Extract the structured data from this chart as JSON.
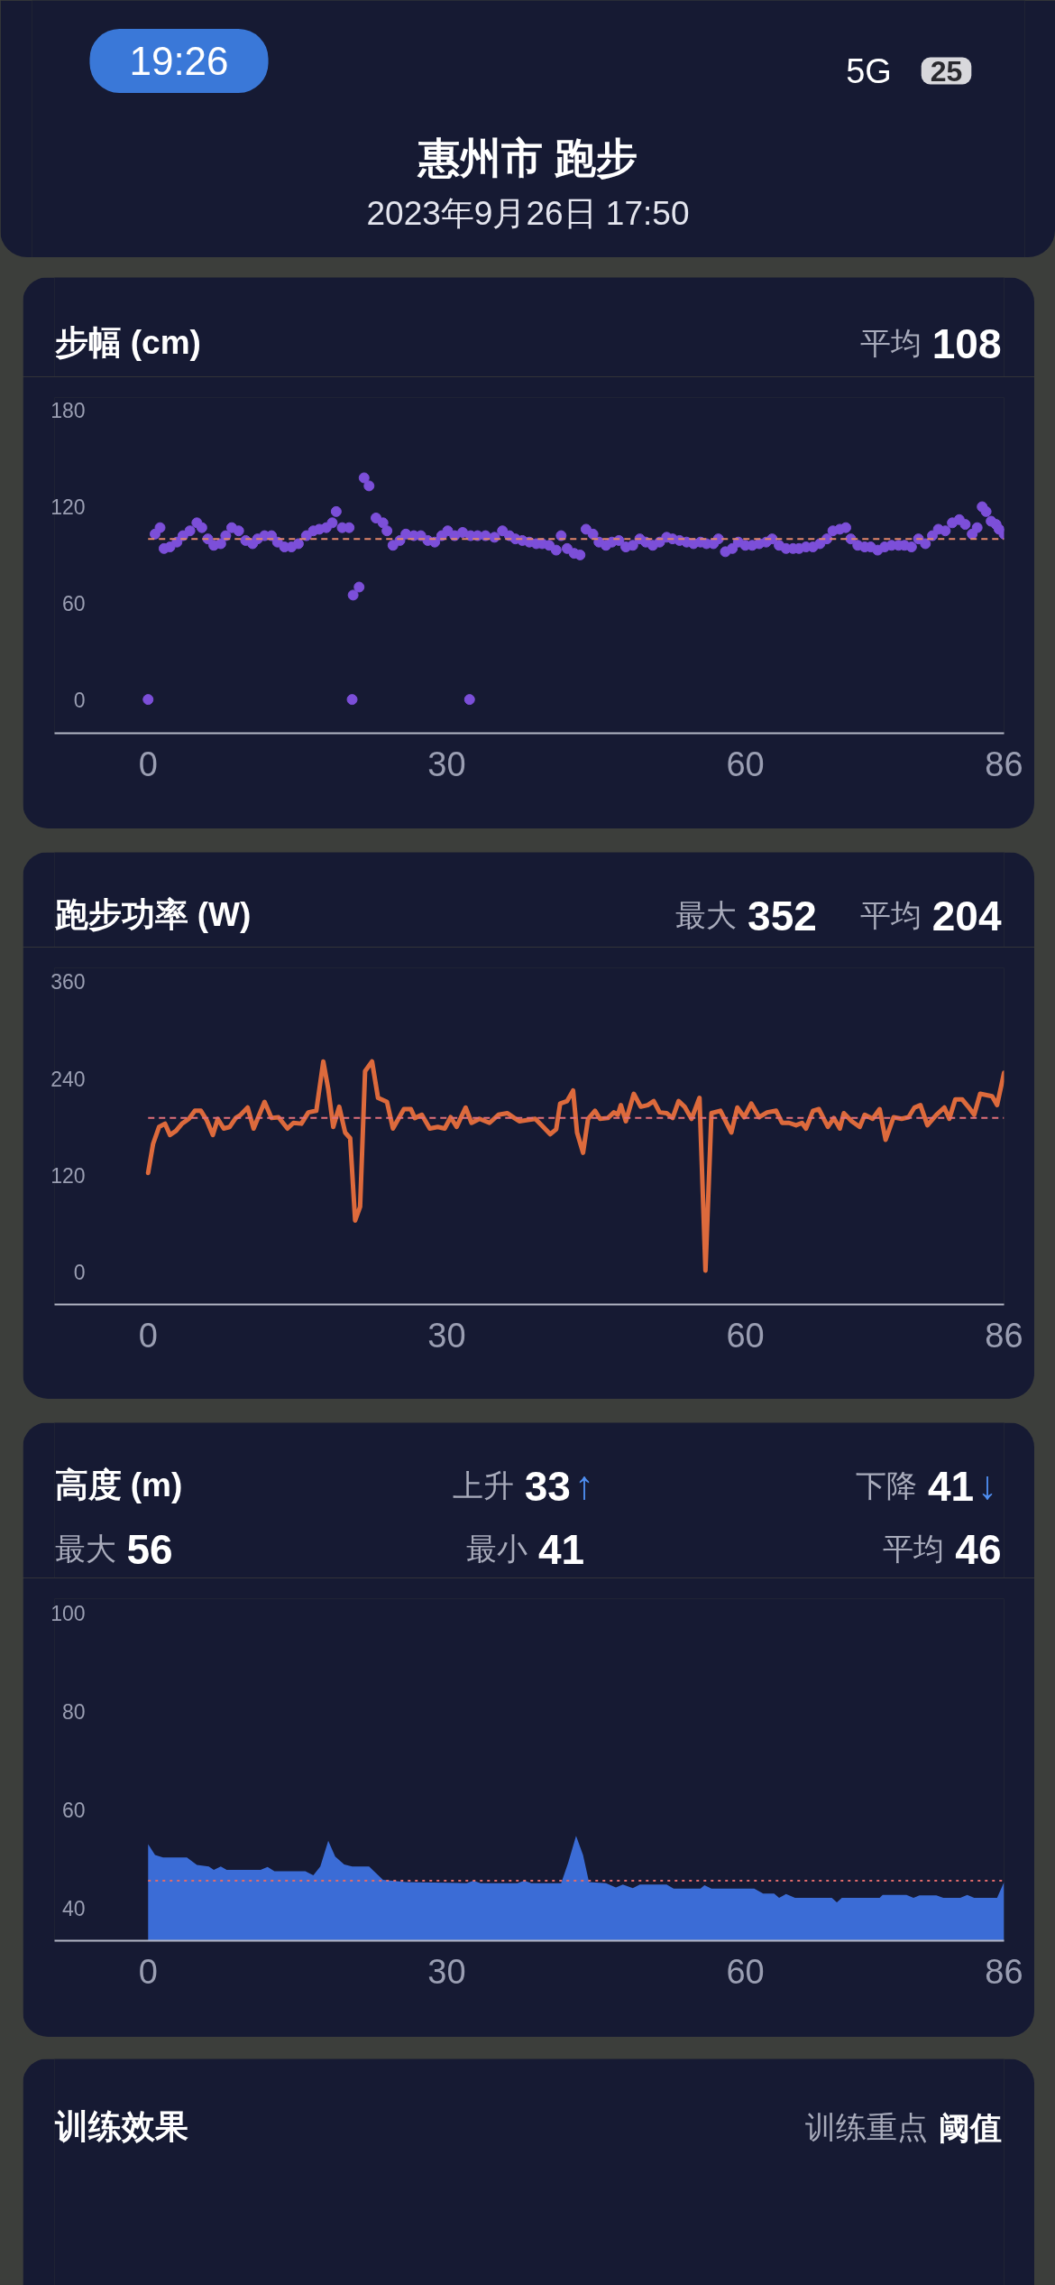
{
  "chart_data": [
    {
      "type": "other",
      "title": "惠州市 跑步",
      "subtitle": "2023年9月26日 17:50",
      "annotations": [
        "19:26",
        "5G",
        "25"
      ]
    },
    {
      "type": "scatter",
      "title": "步幅 (cm)",
      "annotations": [
        "平均 108"
      ],
      "x": [
        0,
        0.7,
        1.2,
        1.6,
        2.2,
        2.9,
        3.5,
        4.2,
        4.9,
        5.4,
        6.0,
        6.6,
        7.3,
        7.8,
        8.4,
        9.1,
        9.8,
        10.5,
        11.0,
        11.7,
        12.4,
        13.0,
        13.7,
        14.4,
        15.1,
        15.9,
        16.6,
        17.2,
        17.9,
        18.5,
        18.9,
        19.5,
        20.2,
        20.5,
        20.6,
        21.2,
        21.7,
        22.2,
        22.9,
        23.6,
        24.0,
        24.6,
        25.3,
        25.9,
        26.7,
        27.4,
        28.1,
        28.8,
        29.5,
        30.1,
        30.8,
        31.6,
        32.3,
        32.4,
        33.1,
        33.9,
        34.8,
        35.6,
        36.3,
        36.9,
        37.6,
        38.3,
        39.0,
        39.6,
        40.3,
        41.0,
        41.5,
        42.1,
        42.8,
        43.4,
        44.0,
        44.7,
        45.3,
        46.0,
        46.6,
        47.3,
        48.0,
        48.7,
        49.4,
        50.0,
        50.7,
        51.4,
        52.1,
        52.7,
        53.4,
        54.1,
        54.8,
        55.5,
        56.1,
        56.8,
        57.3,
        58.0,
        58.7,
        59.3,
        60.0,
        60.7,
        61.4,
        62.1,
        62.7,
        63.4,
        64.1,
        64.8,
        65.4,
        66.1,
        66.8,
        67.5,
        68.2,
        68.8,
        69.5,
        70.1,
        70.6,
        71.3,
        72.0,
        72.6,
        73.3,
        74.0,
        74.7,
        75.4,
        76.0,
        76.7,
        77.4,
        78.1,
        78.8,
        79.4,
        80.1,
        80.8,
        81.5,
        82.1,
        82.8,
        83.3,
        83.8,
        84.2,
        84.7,
        85.2,
        85.5,
        86.0
      ],
      "values": [
        0,
        103,
        107,
        94,
        95,
        98,
        102,
        105,
        110,
        107,
        100,
        96,
        97,
        102,
        107,
        105,
        99,
        97,
        100,
        102,
        102,
        98,
        95,
        95,
        97,
        102,
        105,
        106,
        107,
        110,
        117,
        107,
        107,
        0,
        65,
        70,
        138,
        133,
        113,
        110,
        105,
        96,
        99,
        103,
        102,
        102,
        99,
        98,
        102,
        105,
        102,
        104,
        0,
        102,
        102,
        102,
        101,
        105,
        102,
        100,
        99,
        98,
        97,
        97,
        96,
        93,
        102,
        94,
        91,
        90,
        106,
        103,
        98,
        96,
        98,
        99,
        95,
        96,
        100,
        98,
        96,
        98,
        101,
        100,
        99,
        98,
        97,
        98,
        97,
        97,
        100,
        92,
        94,
        98,
        96,
        96,
        97,
        98,
        100,
        96,
        94,
        94,
        94,
        95,
        95,
        97,
        100,
        105,
        106,
        107,
        100,
        96,
        95,
        95,
        93,
        95,
        96,
        96,
        96,
        95,
        100,
        97,
        102,
        106,
        105,
        110,
        112,
        109,
        103,
        107,
        120,
        117,
        111,
        109,
        106,
        103
      ],
      "color": "#7c4fd9",
      "marker": "circle",
      "xlim": [
        -9.4,
        86
      ],
      "xticks": [
        0,
        30,
        60,
        86
      ],
      "ylim": [
        -21,
        188
      ],
      "yticks": [
        0,
        60,
        120,
        180
      ],
      "ref_lines": [
        {
          "axis": "y",
          "value": 100,
          "color": "#e3876a",
          "line_style": "dashed"
        }
      ]
    },
    {
      "type": "line",
      "title": "跑步功率 (W)",
      "annotations": [
        "最大 352",
        "平均 204"
      ],
      "x": [
        0,
        0.5,
        1.1,
        1.7,
        2.2,
        2.8,
        3.4,
        4.1,
        4.7,
        5.3,
        5.9,
        6.5,
        7.0,
        7.6,
        8.2,
        8.8,
        9.3,
        10.0,
        10.6,
        11.7,
        12.4,
        13.1,
        14.0,
        14.6,
        15.4,
        16.1,
        16.9,
        17.6,
        18.1,
        18.6,
        19.2,
        19.8,
        20.3,
        20.8,
        21.3,
        21.8,
        22.5,
        23.1,
        24.0,
        24.6,
        25.7,
        26.4,
        26.8,
        27.5,
        28.3,
        29.1,
        29.8,
        30.4,
        31.0,
        31.9,
        32.5,
        33.3,
        34.3,
        35.2,
        36.1,
        36.8,
        37.3,
        38.9,
        39.7,
        40.4,
        41.0,
        41.4,
        42.1,
        42.7,
        43.1,
        43.7,
        44.2,
        44.9,
        45.4,
        46.2,
        46.8,
        47.2,
        47.5,
        48.0,
        48.8,
        49.5,
        50.2,
        50.8,
        51.4,
        52.1,
        52.7,
        53.3,
        53.9,
        54.6,
        55.4,
        56.0,
        56.6,
        57.5,
        58.6,
        59.2,
        59.9,
        60.6,
        61.4,
        62.2,
        63.1,
        63.7,
        64.4,
        65.1,
        65.7,
        66.1,
        66.8,
        67.4,
        68.3,
        68.9,
        69.5,
        69.9,
        70.7,
        71.5,
        72.0,
        72.8,
        73.5,
        74.1,
        74.9,
        75.7,
        76.4,
        77.0,
        77.6,
        78.3,
        79.2,
        80.0,
        80.5,
        81.1,
        81.8,
        82.4,
        83.0,
        83.6,
        84.8,
        85.3,
        86.0
      ],
      "values": [
        123,
        159,
        180,
        184,
        170,
        175,
        184,
        190,
        200,
        200,
        188,
        170,
        190,
        178,
        180,
        191,
        195,
        204,
        178,
        211,
        191,
        192,
        178,
        185,
        184,
        198,
        200,
        261,
        227,
        180,
        205,
        173,
        166,
        64,
        81,
        249,
        261,
        216,
        211,
        178,
        202,
        202,
        191,
        195,
        178,
        180,
        178,
        192,
        180,
        204,
        185,
        190,
        185,
        195,
        197,
        191,
        187,
        190,
        180,
        171,
        177,
        209,
        212,
        225,
        173,
        148,
        190,
        200,
        190,
        191,
        198,
        195,
        207,
        187,
        221,
        205,
        207,
        212,
        198,
        197,
        191,
        212,
        205,
        190,
        216,
        2,
        197,
        200,
        173,
        204,
        192,
        209,
        192,
        198,
        200,
        185,
        185,
        182,
        185,
        178,
        200,
        202,
        180,
        191,
        178,
        197,
        187,
        180,
        195,
        190,
        202,
        164,
        192,
        190,
        192,
        204,
        207,
        182,
        195,
        204,
        190,
        214,
        214,
        205,
        195,
        221,
        218,
        207,
        247
      ],
      "color": "#dd6a3c",
      "xlim": [
        -9.4,
        86
      ],
      "xticks": [
        0,
        30,
        60,
        86
      ],
      "ylim": [
        -40,
        377
      ],
      "yticks": [
        0,
        120,
        240,
        360
      ],
      "ref_lines": [
        {
          "axis": "y",
          "value": 191,
          "color": "#e0707a",
          "line_style": "dashed"
        }
      ]
    },
    {
      "type": "area",
      "title": "高度 (m)",
      "annotations": [
        "上升 33↑",
        "下降 41↓",
        "最大 56",
        "最小 41",
        "平均 46"
      ],
      "x": [
        0,
        0.7,
        1.5,
        3.9,
        4.9,
        6.1,
        6.6,
        7.3,
        7.9,
        11.3,
        12.0,
        12.7,
        15.8,
        16.6,
        17.3,
        18.1,
        18.8,
        19.7,
        20.5,
        22.2,
        23.6,
        25.9,
        32.0,
        32.7,
        33.4,
        37.1,
        37.8,
        38.5,
        41.5,
        42.2,
        43.0,
        43.7,
        44.3,
        46.0,
        47.0,
        47.7,
        48.7,
        49.4,
        52.1,
        52.8,
        55.5,
        55.9,
        56.6,
        60.9,
        61.8,
        62.9,
        63.4,
        64.1,
        65.0,
        68.7,
        69.2,
        69.7,
        73.5,
        73.8,
        76.2,
        76.9,
        77.5,
        79.2,
        79.9,
        81.6,
        82.3,
        83.0,
        85.3,
        86.0
      ],
      "values": [
        53.0,
        50.8,
        50.3,
        50.3,
        48.8,
        48.5,
        47.8,
        48.5,
        47.8,
        47.8,
        48.4,
        47.5,
        47.5,
        46.7,
        48.5,
        53.7,
        50.5,
        48.9,
        48.5,
        48.5,
        45.8,
        45.3,
        45.1,
        45.6,
        45.1,
        45.1,
        45.6,
        45.1,
        45.1,
        49.2,
        54.7,
        50.8,
        45.3,
        45.1,
        44.2,
        44.8,
        44.1,
        44.8,
        44.8,
        44.0,
        44.0,
        44.7,
        44.0,
        44.0,
        43.0,
        43.0,
        42.1,
        42.9,
        42.1,
        42.1,
        41.2,
        42.1,
        42.1,
        42.7,
        42.7,
        42.1,
        42.6,
        42.6,
        42.1,
        42.1,
        42.7,
        42.1,
        42.1,
        45.3
      ],
      "color": "#3b6cd6",
      "xlim": [
        -9.4,
        86
      ],
      "xticks": [
        0,
        30,
        60,
        86
      ],
      "ylim": [
        33.4,
        102.9
      ],
      "yticks": [
        40,
        60,
        80,
        100
      ],
      "ref_lines": [
        {
          "axis": "y",
          "value": 45.6,
          "color": "#e06a6a",
          "line_style": "dotted"
        }
      ]
    },
    {
      "type": "other",
      "title": "训练效果",
      "annotations": [
        "训练重点 阈值"
      ]
    }
  ]
}
